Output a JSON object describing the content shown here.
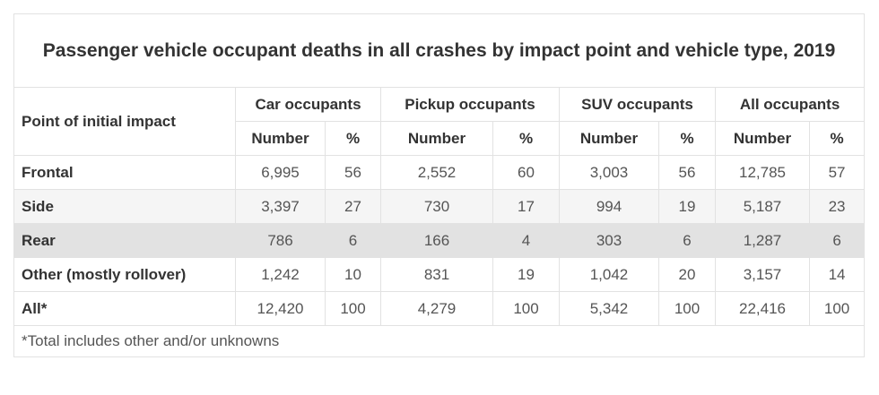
{
  "title": "Passenger vehicle occupant deaths in all crashes by impact point and vehicle type, 2019",
  "header": {
    "row_label": "Point of initial impact",
    "groups": [
      "Car occupants",
      "Pickup occupants",
      "SUV occupants",
      "All occupants"
    ],
    "sub": [
      "Number",
      "%"
    ]
  },
  "rows": [
    {
      "label": "Frontal",
      "values": [
        "6,995",
        "56",
        "2,552",
        "60",
        "3,003",
        "56",
        "12,785",
        "57"
      ]
    },
    {
      "label": "Side",
      "values": [
        "3,397",
        "27",
        "730",
        "17",
        "994",
        "19",
        "5,187",
        "23"
      ]
    },
    {
      "label": "Rear",
      "values": [
        "786",
        "6",
        "166",
        "4",
        "303",
        "6",
        "1,287",
        "6"
      ]
    },
    {
      "label": "Other (mostly rollover)",
      "values": [
        "1,242",
        "10",
        "831",
        "19",
        "1,042",
        "20",
        "3,157",
        "14"
      ]
    },
    {
      "label": "All*",
      "values": [
        "12,420",
        "100",
        "4,279",
        "100",
        "5,342",
        "100",
        "22,416",
        "100"
      ]
    }
  ],
  "footnote": "*Total includes other and/or unknowns",
  "colors": {
    "alt_row": "#f5f5f5",
    "highlight_row": "#e2e2e2",
    "border": "#e2e2e2"
  }
}
